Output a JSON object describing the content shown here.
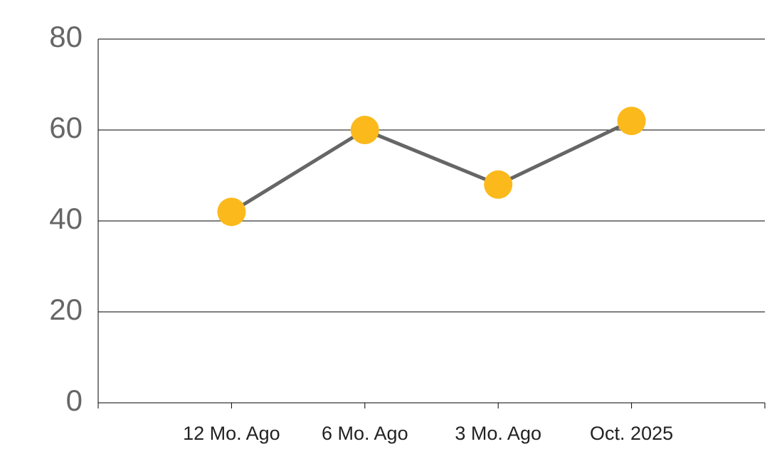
{
  "chart_data": {
    "type": "line",
    "categories": [
      null,
      "12 Mo. Ago",
      "6 Mo. Ago",
      "3 Mo. Ago",
      "Oct. 2025",
      null
    ],
    "values": [
      null,
      42,
      60,
      48,
      62,
      null
    ],
    "color": "#666666",
    "marker_color": "#fbb91c",
    "ylim": [
      0,
      80
    ],
    "yticks": [
      0,
      20,
      40,
      60,
      80
    ],
    "grid": true
  }
}
